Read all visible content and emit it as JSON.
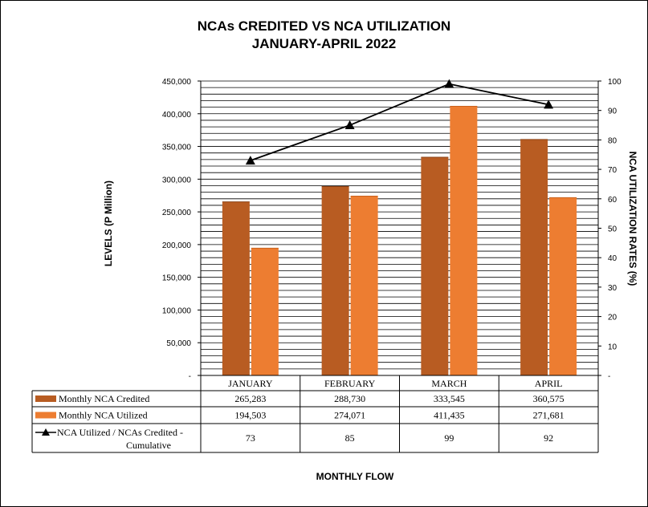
{
  "chart_data": {
    "type": "bar",
    "title_line1": "NCAs CREDITED VS NCA UTILIZATION",
    "title_line2": "JANUARY-APRIL 2022",
    "xlabel": "MONTHLY  FLOW",
    "ylabel": "LEVELS (P Million)",
    "y2label": "NCA UTILIZATION RATES (%)",
    "categories": [
      "JANUARY",
      "FEBRUARY",
      "MARCH",
      "APRIL"
    ],
    "ylim": [
      0,
      450000
    ],
    "y_ticks": [
      "-",
      "50,000",
      "100,000",
      "150,000",
      "200,000",
      "250,000",
      "300,000",
      "350,000",
      "400,000",
      "450,000"
    ],
    "y2lim": [
      0,
      100
    ],
    "y2_ticks": [
      "-",
      "10",
      "20",
      "30",
      "40",
      "50",
      "60",
      "70",
      "80",
      "90",
      "100"
    ],
    "grid": true,
    "series": [
      {
        "name": "Monthly NCA Credited",
        "kind": "bar",
        "color": "#B85C22",
        "values": [
          265283,
          288730,
          333545,
          360575
        ],
        "display": [
          "265,283",
          "288,730",
          "333,545",
          "360,575"
        ]
      },
      {
        "name": "Monthly NCA Utilized",
        "kind": "bar",
        "color": "#ED7D31",
        "values": [
          194503,
          274071,
          411435,
          271681
        ],
        "display": [
          "194,503",
          "274,071",
          "411,435",
          "271,681"
        ]
      },
      {
        "name_line1": "NCA Utilized / NCAs Credited -",
        "name_line2": "Cumulative",
        "kind": "line",
        "axis": "secondary",
        "color": "#000000",
        "values": [
          73,
          85,
          99,
          92
        ],
        "display": [
          "73",
          "85",
          "99",
          "92"
        ]
      }
    ]
  }
}
